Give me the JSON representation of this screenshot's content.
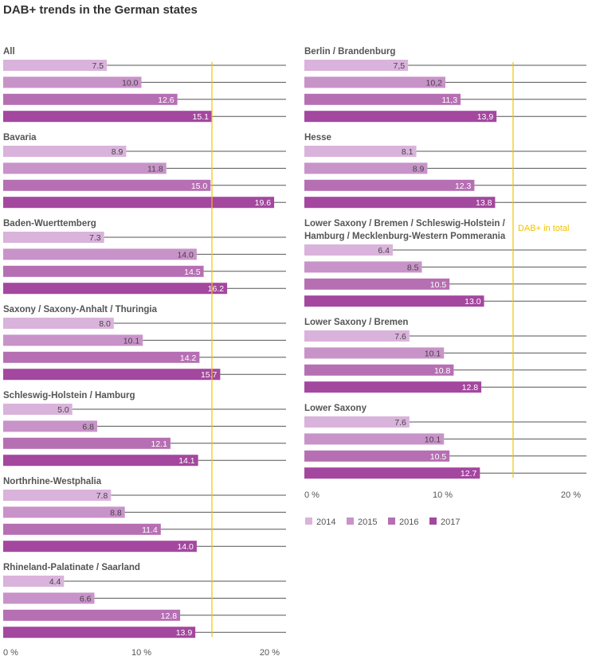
{
  "chart_data": {
    "type": "bar",
    "orientation": "horizontal",
    "title": "DAB+ trends in the German states",
    "series_names": [
      "2014",
      "2015",
      "2016",
      "2017"
    ],
    "colors": [
      "#d9b3db",
      "#c893c8",
      "#b66fb3",
      "#a4479f"
    ],
    "reference_line": {
      "value": 15.1,
      "label": "DAB+ in total",
      "color": "#f2c200"
    },
    "x_range": [
      0,
      20
    ],
    "x_ticks": [
      "0 %",
      "10 %",
      "20 %"
    ],
    "panels": [
      {
        "groups": [
          {
            "label": "All",
            "values": [
              7.5,
              10.0,
              12.6,
              15.1
            ],
            "value_labels": [
              "7.5",
              "10.0",
              "12.6",
              "15.1"
            ]
          },
          {
            "label": "Bavaria",
            "values": [
              8.9,
              11.8,
              15.0,
              19.6
            ],
            "value_labels": [
              "8.9",
              "11.8",
              "15.0",
              "19.6"
            ]
          },
          {
            "label": "Baden-Wuerttemberg",
            "values": [
              7.3,
              14.0,
              14.5,
              16.2
            ],
            "value_labels": [
              "7.3",
              "14.0",
              "14.5",
              "16.2"
            ]
          },
          {
            "label": "Saxony / Saxony-Anhalt / Thuringia",
            "values": [
              8.0,
              10.1,
              14.2,
              15.7
            ],
            "value_labels": [
              "8.0",
              "10.1",
              "14.2",
              "15.7"
            ]
          },
          {
            "label": "Schleswig-Holstein / Hamburg",
            "values": [
              5.0,
              6.8,
              12.1,
              14.1
            ],
            "value_labels": [
              "5.0",
              "6.8",
              "12.1",
              "14.1"
            ]
          },
          {
            "label": "Northrhine-Westphalia",
            "values": [
              7.8,
              8.8,
              11.4,
              14.0
            ],
            "value_labels": [
              "7.8",
              "8.8",
              "11.4",
              "14.0"
            ]
          },
          {
            "label": "Rhineland-Palatinate / Saarland",
            "values": [
              4.4,
              6.6,
              12.8,
              13.9
            ],
            "value_labels": [
              "4.4",
              "6.6",
              "12.8",
              "13.9"
            ]
          }
        ]
      },
      {
        "groups": [
          {
            "label": "Berlin / Brandenburg",
            "values": [
              7.5,
              10.2,
              11.3,
              13.9
            ],
            "value_labels": [
              "7,5",
              "10,2",
              "11,3",
              "13,9"
            ]
          },
          {
            "label": "Hesse",
            "values": [
              8.1,
              8.9,
              12.3,
              13.8
            ],
            "value_labels": [
              "8.1",
              "8.9",
              "12.3",
              "13.8"
            ]
          },
          {
            "label": "Lower Saxony / Bremen / Schleswig-Holstein / Hamburg / Mecklenburg-Western Pommerania",
            "label_lines": [
              "Lower Saxony / Bremen / Schleswig-Holstein /",
              "Hamburg / Mecklenburg-Western Pommerania"
            ],
            "values": [
              6.4,
              8.5,
              10.5,
              13.0
            ],
            "value_labels": [
              "6.4",
              "8.5",
              "10.5",
              "13.0"
            ]
          },
          {
            "label": "Lower Saxony / Bremen",
            "values": [
              7.6,
              10.1,
              10.8,
              12.8
            ],
            "value_labels": [
              "7.6",
              "10.1",
              "10.8",
              "12.8"
            ]
          },
          {
            "label": "Lower Saxony",
            "values": [
              7.6,
              10.1,
              10.5,
              12.7
            ],
            "value_labels": [
              "7.6",
              "10.1",
              "10.5",
              "12.7"
            ]
          }
        ]
      }
    ]
  }
}
